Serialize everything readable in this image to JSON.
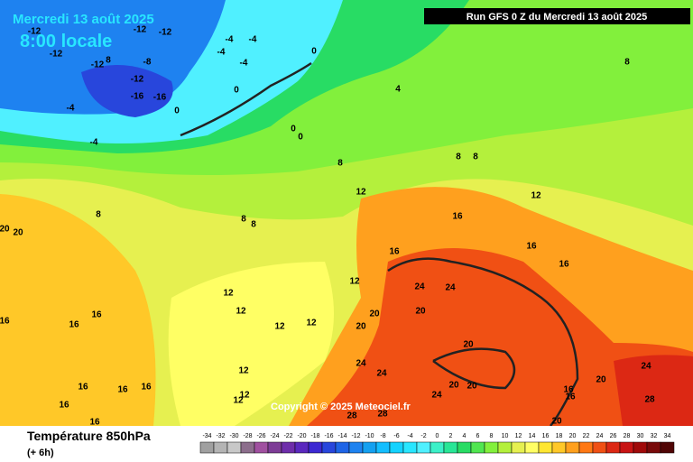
{
  "header": {
    "title": "Mercredi 13 août 2025",
    "subtitle": "8:00 locale",
    "run": "Run GFS 0 Z du Mercredi 13 août 2025"
  },
  "copyright": "Copyright © 2025 Meteociel.fr",
  "footer": {
    "title": "Température 850hPa",
    "step": "(+ 6h)"
  },
  "legend": {
    "labels": [
      -34,
      -32,
      -30,
      -28,
      -26,
      -24,
      -22,
      -20,
      -18,
      -16,
      -14,
      -12,
      -10,
      -8,
      -6,
      -4,
      -2,
      0,
      2,
      4,
      6,
      8,
      10,
      12,
      14,
      16,
      18,
      20,
      22,
      24,
      26,
      28,
      30,
      32,
      34
    ],
    "colors": [
      "#a0a0a0",
      "#b4b4b4",
      "#c8c8c8",
      "#8c6e8c",
      "#a050a0",
      "#7d3c96",
      "#6e2daa",
      "#5a28be",
      "#3c28d2",
      "#2846dc",
      "#1e64e6",
      "#1e82f0",
      "#14a0f0",
      "#14beff",
      "#14d2ff",
      "#28e6ff",
      "#50f0ff",
      "#3cf0c8",
      "#28e696",
      "#28dc64",
      "#50e650",
      "#82f03c",
      "#b4f03c",
      "#e6f050",
      "#ffff64",
      "#ffe632",
      "#ffc828",
      "#ffa01e",
      "#ff7814",
      "#f05014",
      "#dc2814",
      "#c81414",
      "#a00a0a",
      "#780a0a",
      "#500505"
    ]
  },
  "map": {
    "labels": [
      -12,
      -12,
      -12,
      -4,
      -4,
      -4,
      -4,
      0,
      -12,
      -12,
      8,
      -8,
      -12,
      -16,
      -16,
      0,
      -4,
      0,
      4,
      8,
      0,
      0,
      -4,
      8,
      8,
      8,
      12,
      12,
      16,
      8,
      8,
      8,
      20,
      20,
      16,
      16,
      16,
      12,
      24,
      24,
      12,
      12,
      20,
      20,
      12,
      12,
      16,
      16,
      16,
      20,
      20,
      24,
      24,
      24,
      20,
      20,
      16,
      16,
      20,
      24,
      28,
      12,
      12,
      12,
      16,
      16,
      16,
      16,
      16,
      28,
      28,
      20
    ]
  }
}
